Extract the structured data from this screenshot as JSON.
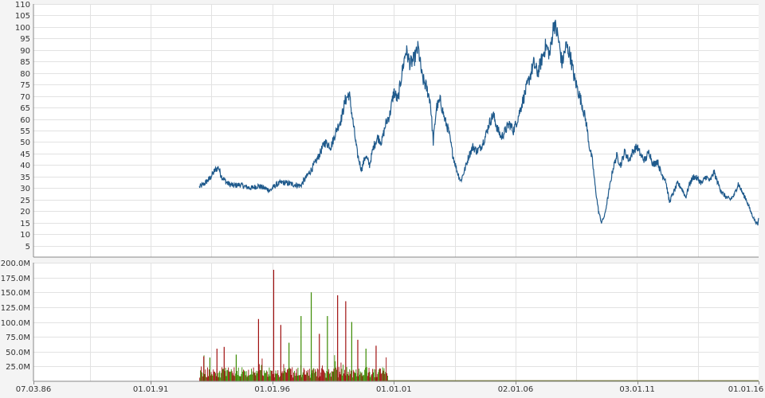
{
  "chart_data": [
    {
      "type": "line",
      "panel": "price",
      "ylim": [
        0,
        110
      ],
      "y_ticks": [
        5,
        10,
        15,
        20,
        25,
        30,
        35,
        40,
        45,
        50,
        55,
        60,
        65,
        70,
        75,
        80,
        85,
        90,
        95,
        100,
        105,
        110
      ],
      "xlim": [
        "1986-03-07",
        "2016-01-01"
      ],
      "grid": true,
      "line_color": "#1f5a8c",
      "points": [
        [
          "1993-01-01",
          30.5
        ],
        [
          "1993-03-01",
          31.5
        ],
        [
          "1993-06-01",
          34
        ],
        [
          "1993-09-01",
          38
        ],
        [
          "1993-10-15",
          39
        ],
        [
          "1993-12-01",
          35
        ],
        [
          "1994-03-01",
          32
        ],
        [
          "1994-06-01",
          31
        ],
        [
          "1994-09-01",
          31.5
        ],
        [
          "1994-12-01",
          30.5
        ],
        [
          "1995-03-01",
          30
        ],
        [
          "1995-06-01",
          31
        ],
        [
          "1995-09-01",
          30
        ],
        [
          "1995-12-01",
          29
        ],
        [
          "1996-03-01",
          31.5
        ],
        [
          "1996-06-01",
          32.5
        ],
        [
          "1996-09-01",
          32
        ],
        [
          "1996-12-01",
          31.5
        ],
        [
          "1997-03-01",
          31
        ],
        [
          "1997-06-01",
          35
        ],
        [
          "1997-09-01",
          39
        ],
        [
          "1997-12-01",
          44
        ],
        [
          "1998-03-01",
          50
        ],
        [
          "1998-06-01",
          48
        ],
        [
          "1998-09-01",
          56
        ],
        [
          "1998-11-01",
          60
        ],
        [
          "1999-01-01",
          68
        ],
        [
          "1999-03-01",
          71
        ],
        [
          "1999-05-01",
          58
        ],
        [
          "1999-07-01",
          45
        ],
        [
          "1999-09-01",
          38
        ],
        [
          "1999-11-01",
          44
        ],
        [
          "2000-01-01",
          40
        ],
        [
          "2000-03-01",
          48
        ],
        [
          "2000-05-01",
          52
        ],
        [
          "2000-07-01",
          50
        ],
        [
          "2000-09-01",
          58
        ],
        [
          "2000-11-01",
          62
        ],
        [
          "2001-01-01",
          72
        ],
        [
          "2001-03-01",
          68
        ],
        [
          "2001-05-01",
          80
        ],
        [
          "2001-07-01",
          90
        ],
        [
          "2001-09-01",
          84
        ],
        [
          "2001-11-01",
          86
        ],
        [
          "2002-01-01",
          91
        ],
        [
          "2002-03-01",
          78
        ],
        [
          "2002-05-01",
          74
        ],
        [
          "2002-07-01",
          68
        ],
        [
          "2002-08-15",
          50
        ],
        [
          "2002-10-01",
          65
        ],
        [
          "2002-12-01",
          68
        ],
        [
          "2003-02-01",
          60
        ],
        [
          "2003-04-01",
          55
        ],
        [
          "2003-06-01",
          45
        ],
        [
          "2003-08-01",
          38
        ],
        [
          "2003-10-01",
          33
        ],
        [
          "2003-12-01",
          38
        ],
        [
          "2004-02-01",
          44
        ],
        [
          "2004-04-01",
          48
        ],
        [
          "2004-06-01",
          46
        ],
        [
          "2004-08-01",
          48
        ],
        [
          "2004-10-01",
          52
        ],
        [
          "2004-12-01",
          58
        ],
        [
          "2005-02-01",
          62
        ],
        [
          "2005-04-01",
          56
        ],
        [
          "2005-06-01",
          52
        ],
        [
          "2005-08-01",
          55
        ],
        [
          "2005-10-01",
          58
        ],
        [
          "2005-12-01",
          55
        ],
        [
          "2006-02-01",
          60
        ],
        [
          "2006-04-01",
          66
        ],
        [
          "2006-06-01",
          72
        ],
        [
          "2006-08-01",
          78
        ],
        [
          "2006-10-01",
          84
        ],
        [
          "2006-12-01",
          80
        ],
        [
          "2007-02-01",
          86
        ],
        [
          "2007-04-01",
          92
        ],
        [
          "2007-06-01",
          88
        ],
        [
          "2007-08-01",
          102
        ],
        [
          "2007-10-01",
          96
        ],
        [
          "2007-12-01",
          84
        ],
        [
          "2008-02-01",
          92
        ],
        [
          "2008-04-01",
          88
        ],
        [
          "2008-06-01",
          78
        ],
        [
          "2008-08-01",
          72
        ],
        [
          "2008-10-01",
          66
        ],
        [
          "2008-12-01",
          58
        ],
        [
          "2009-01-15",
          48
        ],
        [
          "2009-03-01",
          42
        ],
        [
          "2009-04-15",
          30
        ],
        [
          "2009-06-01",
          20
        ],
        [
          "2009-07-15",
          15
        ],
        [
          "2009-09-01",
          18
        ],
        [
          "2009-11-01",
          28
        ],
        [
          "2010-01-01",
          38
        ],
        [
          "2010-03-01",
          44
        ],
        [
          "2010-05-01",
          40
        ],
        [
          "2010-07-01",
          46
        ],
        [
          "2010-09-01",
          42
        ],
        [
          "2010-11-01",
          46
        ],
        [
          "2011-01-01",
          48
        ],
        [
          "2011-03-01",
          44
        ],
        [
          "2011-05-01",
          42
        ],
        [
          "2011-07-01",
          46
        ],
        [
          "2011-09-01",
          40
        ],
        [
          "2011-11-01",
          42
        ],
        [
          "2012-01-01",
          36
        ],
        [
          "2012-03-01",
          34
        ],
        [
          "2012-05-01",
          24
        ],
        [
          "2012-07-01",
          28
        ],
        [
          "2012-09-01",
          32
        ],
        [
          "2012-11-01",
          30
        ],
        [
          "2013-01-01",
          26
        ],
        [
          "2013-03-01",
          32
        ],
        [
          "2013-05-01",
          35
        ],
        [
          "2013-07-01",
          34
        ],
        [
          "2013-09-01",
          32
        ],
        [
          "2013-11-01",
          35
        ],
        [
          "2014-01-01",
          33
        ],
        [
          "2014-03-01",
          37
        ],
        [
          "2014-05-01",
          32
        ],
        [
          "2014-07-01",
          28
        ],
        [
          "2014-09-01",
          26
        ],
        [
          "2014-11-01",
          25
        ],
        [
          "2015-01-01",
          27
        ],
        [
          "2015-03-01",
          32
        ],
        [
          "2015-05-01",
          28
        ],
        [
          "2015-07-01",
          25
        ],
        [
          "2015-09-01",
          20
        ],
        [
          "2015-11-01",
          16
        ],
        [
          "2015-12-20",
          14
        ],
        [
          "2016-01-01",
          17
        ]
      ]
    },
    {
      "type": "bar",
      "panel": "volume",
      "ylim": [
        0,
        200000000
      ],
      "y_tick_labels": [
        "200.0M",
        "175.0M",
        "150.0M",
        "125.0M",
        "100.0M",
        "75.0M",
        "50.0M",
        "25.0M"
      ],
      "y_tick_values": [
        200000000,
        175000000,
        150000000,
        125000000,
        100000000,
        75000000,
        50000000,
        25000000
      ],
      "x_tick_labels": [
        "07.03.86",
        "01.01.91",
        "01.01.96",
        "01.01.01",
        "02.01.06",
        "03.01.11",
        "01.01.16"
      ],
      "x_tick_dates": [
        "1986-03-07",
        "1991-01-01",
        "1996-01-01",
        "2001-01-01",
        "2006-01-02",
        "2011-01-03",
        "2016-01-01"
      ],
      "up_color": "#3a8a00",
      "down_color": "#a01010",
      "base_range": [
        "1993-01-01",
        "2000-10-01"
      ],
      "base_level": 20000000,
      "spikes": [
        [
          "1993-03-01",
          42000000,
          "down"
        ],
        [
          "1993-06-01",
          40000000,
          "up"
        ],
        [
          "1993-09-15",
          55000000,
          "down"
        ],
        [
          "1994-01-01",
          58000000,
          "down"
        ],
        [
          "1994-07-01",
          45000000,
          "up"
        ],
        [
          "1995-06-01",
          105000000,
          "down"
        ],
        [
          "1996-01-15",
          188000000,
          "down"
        ],
        [
          "1996-05-01",
          95000000,
          "down"
        ],
        [
          "1996-09-01",
          65000000,
          "up"
        ],
        [
          "1997-03-01",
          110000000,
          "up"
        ],
        [
          "1997-08-01",
          150000000,
          "up"
        ],
        [
          "1997-12-01",
          80000000,
          "down"
        ],
        [
          "1998-04-01",
          110000000,
          "up"
        ],
        [
          "1998-09-01",
          145000000,
          "down"
        ],
        [
          "1999-01-01",
          135000000,
          "down"
        ],
        [
          "1999-04-01",
          100000000,
          "up"
        ],
        [
          "1999-07-01",
          70000000,
          "down"
        ],
        [
          "1999-11-01",
          55000000,
          "up"
        ],
        [
          "2000-04-01",
          60000000,
          "down"
        ]
      ],
      "tail_range": [
        "2000-10-01",
        "2016-01-01"
      ],
      "tail_level": 300000
    }
  ]
}
